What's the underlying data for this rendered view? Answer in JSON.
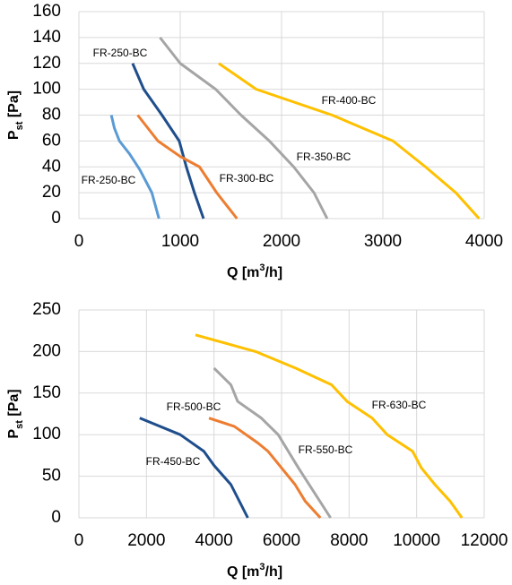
{
  "chart_data": [
    {
      "type": "line",
      "xlabel_parts": [
        "Q [m",
        "3",
        "/h]"
      ],
      "ylabel_parts": [
        "P",
        "st",
        " [Pa]"
      ],
      "xlim": [
        0,
        4000
      ],
      "xticks": [
        0,
        1000,
        2000,
        3000,
        4000
      ],
      "ylim": [
        0,
        160
      ],
      "yticks": [
        0,
        20,
        40,
        60,
        80,
        100,
        120,
        140,
        160
      ],
      "grid": true,
      "series": [
        {
          "name": "FR-250-BC",
          "color": "#1f4e8c",
          "x": [
            530,
            640,
            820,
            990,
            1060,
            1140,
            1230
          ],
          "values": [
            120,
            100,
            80,
            60,
            40,
            20,
            0
          ]
        },
        {
          "name": "FR-250-BC",
          "color": "#5b9bd5",
          "x": [
            320,
            350,
            400,
            500,
            600,
            720,
            790
          ],
          "values": [
            80,
            70,
            60,
            50,
            38,
            20,
            0
          ]
        },
        {
          "name": "FR-300-BC",
          "color": "#ed7d31",
          "x": [
            580,
            780,
            1000,
            1190,
            1360,
            1560
          ],
          "values": [
            80,
            60,
            48,
            40,
            20,
            0
          ]
        },
        {
          "name": "FR-350-BC",
          "color": "#a5a5a5",
          "x": [
            800,
            1000,
            1350,
            1600,
            1880,
            2120,
            2320,
            2450
          ],
          "values": [
            140,
            120,
            100,
            80,
            60,
            40,
            20,
            0
          ]
        },
        {
          "name": "FR-400-BC",
          "color": "#ffc000",
          "x": [
            1380,
            1750,
            2500,
            3100,
            3420,
            3720,
            3950
          ],
          "values": [
            120,
            100,
            80,
            60,
            40,
            20,
            0
          ]
        }
      ]
    },
    {
      "type": "line",
      "xlabel_parts": [
        "Q [m",
        "3",
        "/h]"
      ],
      "ylabel_parts": [
        "P",
        "st",
        " [Pa]"
      ],
      "xlim": [
        0,
        12000
      ],
      "xticks": [
        0,
        2000,
        4000,
        6000,
        8000,
        10000,
        12000
      ],
      "ylim": [
        0,
        250
      ],
      "yticks": [
        0,
        50,
        100,
        150,
        200,
        250
      ],
      "grid": true,
      "series": [
        {
          "name": "FR-450-BC",
          "color": "#1f4e8c",
          "x": [
            1800,
            3000,
            3700,
            4000,
            4500,
            5000
          ],
          "values": [
            120,
            100,
            80,
            63,
            40,
            0
          ]
        },
        {
          "name": "FR-500-BC",
          "color": "#ed7d31",
          "x": [
            3850,
            4600,
            5300,
            5600,
            6000,
            6400,
            6700,
            7150
          ],
          "values": [
            120,
            110,
            90,
            80,
            60,
            40,
            20,
            0
          ]
        },
        {
          "name": "FR-550-BC",
          "color": "#a5a5a5",
          "x": [
            4000,
            4500,
            4700,
            5400,
            5900,
            6200,
            6500,
            7450
          ],
          "values": [
            180,
            160,
            140,
            120,
            100,
            80,
            60,
            0
          ]
        },
        {
          "name": "FR-630-BC",
          "color": "#ffc000",
          "x": [
            3450,
            5230,
            6420,
            7480,
            7940,
            8680,
            9130,
            9880,
            10140,
            10540,
            10990,
            11340
          ],
          "values": [
            220,
            200,
            180,
            160,
            140,
            120,
            100,
            80,
            60,
            40,
            20,
            0
          ]
        }
      ]
    }
  ]
}
